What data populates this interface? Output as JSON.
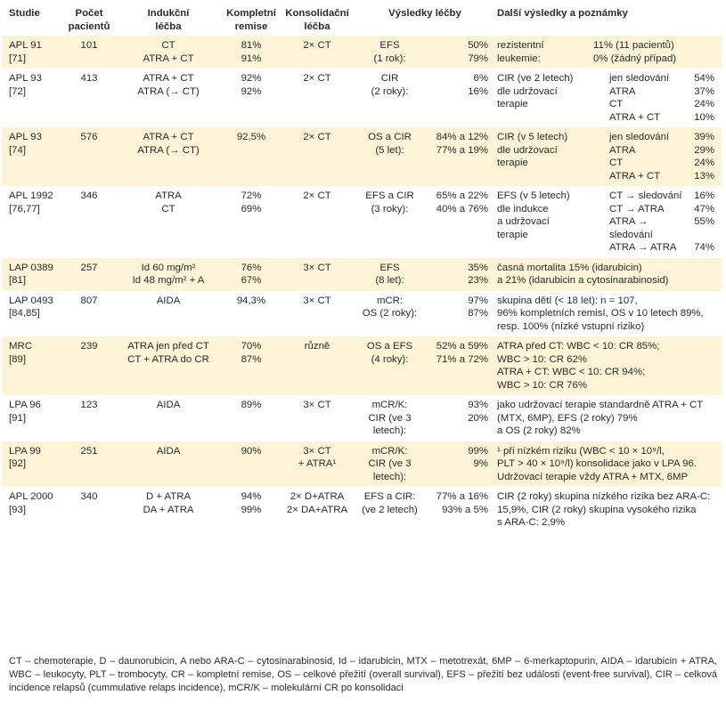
{
  "headers": [
    "Studie",
    "Počet\npacientů",
    "Indukční\nléčba",
    "Kompletní\nremise",
    "Konsolidační\nléčba",
    "Výsledky léčby",
    "Další výsledky a poznámky"
  ],
  "rows": [
    {
      "study": "APL 91\n[71]",
      "patients": "101",
      "induction": "CT\nATRA + CT",
      "remission": "81%\n91%",
      "consolidation": "2× CT",
      "result_label": "EFS\n(1 rok):",
      "result_value": "50%\n79%",
      "notes_type": "twocol",
      "notes_left": "rezistentní\nleukemie:",
      "notes_right": "11% (11 pacientů)\n0% (žádný případ)"
    },
    {
      "study": "APL 93\n[72]",
      "patients": "413",
      "induction": "ATRA + CT\nATRA (→ CT)",
      "remission": "92%\n92%",
      "consolidation": "2× CT",
      "result_label": "CIR\n(2 roky):",
      "result_value": "6%\n16%",
      "notes_type": "grid",
      "notes_left": "CIR (ve 2 letech)\ndle udržovací\nterapie",
      "notes_items": [
        {
          "k": "jen sledování",
          "v": "54%"
        },
        {
          "k": "ATRA",
          "v": "37%"
        },
        {
          "k": "CT",
          "v": "24%"
        },
        {
          "k": "ATRA + CT",
          "v": "10%"
        }
      ]
    },
    {
      "study": "APL 93\n[74]",
      "patients": "576",
      "induction": "ATRA + CT\nATRA (→ CT)",
      "remission": "92,5%",
      "consolidation": "2× CT",
      "result_label": "OS a CIR\n(5 let):",
      "result_value": "84% a 12%\n77% a 19%",
      "notes_type": "grid",
      "notes_left": "CIR (v 5 letech)\ndle udržovací\nterapie",
      "notes_items": [
        {
          "k": "jen sledování",
          "v": "39%"
        },
        {
          "k": "ATRA",
          "v": "29%"
        },
        {
          "k": "CT",
          "v": "24%"
        },
        {
          "k": "ATRA + CT",
          "v": "13%"
        }
      ]
    },
    {
      "study": "APL 1992\n[76,77]",
      "patients": "346",
      "induction": "ATRA\nCT",
      "remission": "72%\n69%",
      "consolidation": "2× CT",
      "result_label": "EFS a CIR\n(3 roky):",
      "result_value": "65% a 22%\n40% a 76%",
      "notes_type": "grid",
      "notes_left": "EFS (v 5 letech)\ndle indukce\na udržovací\nterapie",
      "notes_items": [
        {
          "k": "CT → sledování",
          "v": "16%"
        },
        {
          "k": "CT → ATRA",
          "v": "47%"
        },
        {
          "k": "ATRA → sledování",
          "v": "55%"
        },
        {
          "k": "ATRA → ATRA",
          "v": "74%"
        }
      ]
    },
    {
      "study": "LAP 0389\n[81]",
      "patients": "257",
      "induction": "Id 60 mg/m²\nId 48 mg/m² + A",
      "remission": "76%\n67%",
      "consolidation": "3× CT",
      "result_label": "EFS\n(8 let):",
      "result_value": "35%\n23%",
      "notes_type": "text",
      "notes_text": "časná mortalita 15% (idarubicin)\na 21% (idarubicin a cytosinarabinosid)"
    },
    {
      "study": "LAP 0493\n[84,85]",
      "patients": "807",
      "induction": "AIDA",
      "remission": "94,3%",
      "consolidation": "3× CT",
      "result_label": "mCR:\nOS (2 roky):",
      "result_value": "97%\n87%",
      "notes_type": "text",
      "notes_text": "skupina dětí (< 18 let): n = 107,\n96% kompletních remisí, OS v 10 letech 89%,\nresp. 100% (nízké vstupní riziko)"
    },
    {
      "study": "MRC\n[89]",
      "patients": "239",
      "induction": "ATRA jen před CT\nCT + ATRA do CR",
      "remission": "70%\n87%",
      "consolidation": "různě",
      "result_label": "OS a EFS\n(4 roky):",
      "result_value": "52% a 59%\n71% a 72%",
      "notes_type": "text",
      "notes_text": "ATRA před CT: WBC < 10: CR 85%;\nWBC > 10: CR 62%\nATRA + CT: WBC < 10: CR 94%;\nWBC > 10: CR 76%"
    },
    {
      "study": "LPA 96\n[91]",
      "patients": "123",
      "induction": "AIDA",
      "remission": "89%",
      "consolidation": "3× CT",
      "result_label": "mCR/K:\nCIR (ve 3 letech):",
      "result_value": "93%\n20%",
      "notes_type": "text",
      "notes_text": "jako udržovací terapie standardně ATRA + CT\n(MTX, 6MP), EFS (2 roky) 79%\na OS (2 roky) 82%"
    },
    {
      "study": "LPA 99\n[92]",
      "patients": "251",
      "induction": "AIDA",
      "remission": "90%",
      "consolidation": "3× CT\n+ ATRA¹",
      "result_label": "mCR/K:\nCIR (ve 3 letech):",
      "result_value": "99%\n9%",
      "notes_type": "text",
      "notes_text": "¹ při nízkém riziku (WBC < 10 × 10⁹/l,\nPLT > 40 × 10⁹/l) konsolidace jako v LPA 96.\nUdržovací terapie vždy ATRA + MTX, 6MP"
    },
    {
      "study": "APL 2000\n[93]",
      "patients": "340",
      "induction": "D + ATRA\nDA + ATRA",
      "remission": "94%\n99%",
      "consolidation": "2× D+ATRA\n2× DA+ATRA",
      "result_label": "EFS a CIR:\n(ve 2 letech)",
      "result_value": "77% a 16%\n93% a 5%",
      "notes_type": "text",
      "notes_text": "CIR (2 roky) skupina nízkého rizika bez ARA-C:\n15,9%, CIR (2 roky) skupina vysokého rizika\ns ARA-C: 2,9%"
    }
  ],
  "footnote": "CT – chemoterapie, D – daunorubicin, A nebo ARA-C – cytosinarabinosid, Id – idarubicin, MTX – metotrexát, 6MP – 6-merkaptopurin, AIDA – idarubicin + ATRA, WBC – leukocyty, PLT – trombocyty, CR – kompletní remise, OS – celkové přežití (overall survival), EFS – přežití bez události (event-free survival), CIR – celková incidence relapsů (cummulative relaps incidence), mCR/K – molekulární CR po konsolidaci",
  "colors": {
    "row_tint": "#fdf3d6",
    "text": "#2a2a2a"
  }
}
